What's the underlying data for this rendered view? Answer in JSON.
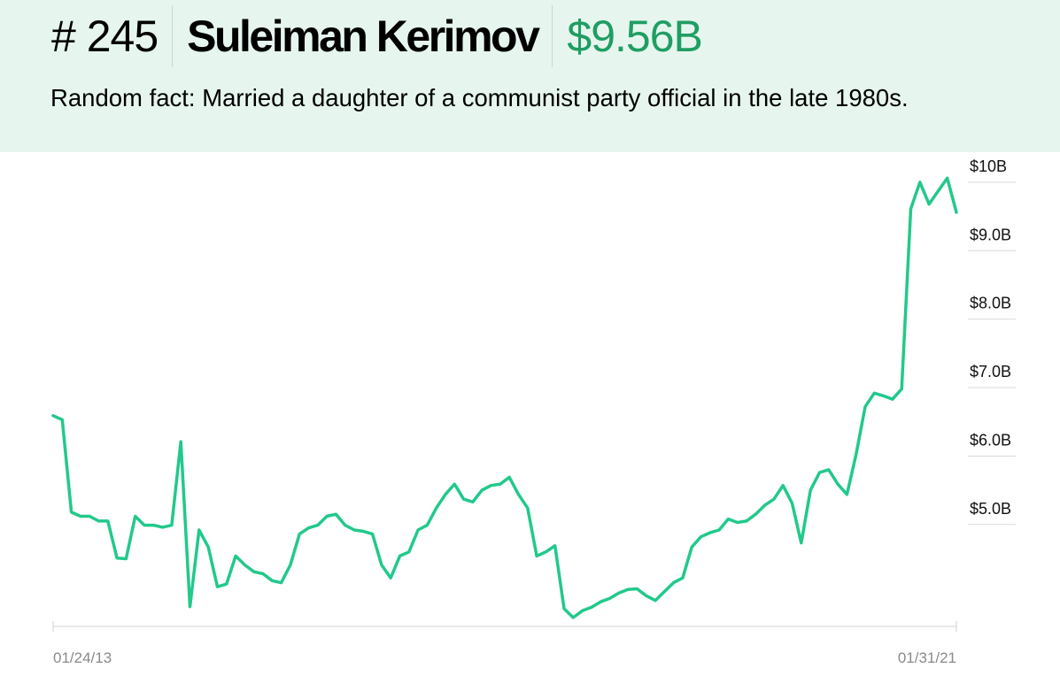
{
  "header": {
    "rank": "# 245",
    "name": "Suleiman Kerimov",
    "net_worth": "$9.56B",
    "fact": "Random fact: Married a daughter of a communist party official in the late 1980s."
  },
  "chart_data": {
    "type": "line",
    "color": "#22c98a",
    "categories": [
      "01/24/13",
      null,
      null,
      null,
      null,
      null,
      null,
      null,
      null,
      null,
      null,
      null,
      null,
      null,
      null,
      null,
      null,
      null,
      null,
      null,
      null,
      null,
      null,
      null,
      null,
      null,
      null,
      null,
      null,
      null,
      null,
      null,
      null,
      null,
      null,
      null,
      null,
      null,
      null,
      null,
      null,
      null,
      null,
      null,
      null,
      null,
      null,
      null,
      null,
      null,
      null,
      null,
      null,
      null,
      null,
      null,
      null,
      null,
      null,
      null,
      null,
      null,
      null,
      null,
      null,
      null,
      null,
      null,
      null,
      null,
      null,
      null,
      null,
      null,
      null,
      null,
      null,
      null,
      null,
      null,
      null,
      null,
      null,
      null,
      null,
      null,
      null,
      null,
      null,
      null,
      null,
      null,
      null,
      null,
      null,
      null,
      null,
      null,
      null,
      "01/31/21"
    ],
    "values": [
      6.59,
      6.53,
      5.18,
      5.12,
      5.12,
      5.05,
      5.05,
      4.51,
      4.5,
      5.12,
      4.99,
      4.99,
      4.96,
      4.99,
      6.21,
      3.8,
      4.92,
      4.67,
      4.09,
      4.13,
      4.54,
      4.41,
      4.31,
      4.28,
      4.18,
      4.15,
      4.41,
      4.86,
      4.95,
      4.99,
      5.12,
      5.15,
      4.99,
      4.92,
      4.9,
      4.86,
      4.41,
      4.22,
      4.54,
      4.6,
      4.92,
      4.99,
      5.24,
      5.44,
      5.59,
      5.37,
      5.33,
      5.5,
      5.57,
      5.59,
      5.69,
      5.44,
      5.24,
      4.54,
      4.6,
      4.69,
      3.77,
      3.64,
      3.74,
      3.79,
      3.87,
      3.92,
      4.0,
      4.05,
      4.06,
      3.96,
      3.89,
      4.02,
      4.15,
      4.22,
      4.67,
      4.82,
      4.88,
      4.92,
      5.08,
      5.03,
      5.05,
      5.15,
      5.28,
      5.37,
      5.57,
      5.31,
      4.73,
      5.5,
      5.76,
      5.8,
      5.59,
      5.44,
      6.02,
      6.72,
      6.92,
      6.88,
      6.83,
      6.98,
      9.61,
      10.0,
      9.68,
      9.87,
      10.06,
      9.56
    ],
    "ylim": [
      3.55,
      10.4
    ],
    "yticks": [
      {
        "value": 5,
        "label": "$5.0B"
      },
      {
        "value": 6,
        "label": "$6.0B"
      },
      {
        "value": 7,
        "label": "$7.0B"
      },
      {
        "value": 8,
        "label": "$8.0B"
      },
      {
        "value": 9,
        "label": "$9.0B"
      },
      {
        "value": 10,
        "label": "$10B"
      }
    ]
  }
}
